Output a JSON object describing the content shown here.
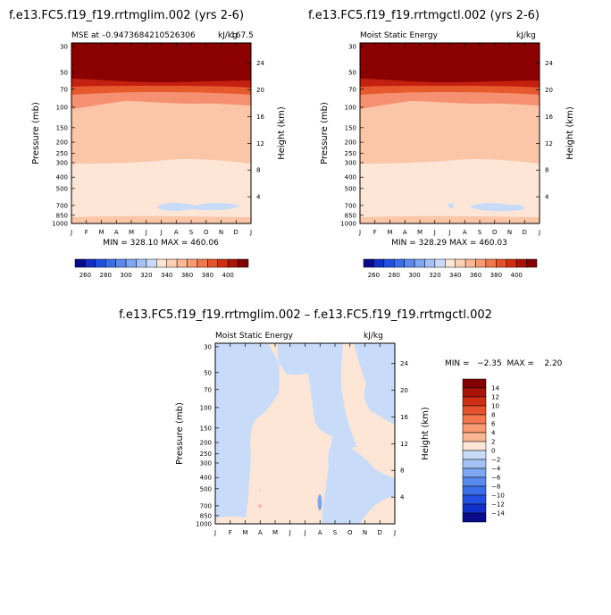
{
  "titles": {
    "left": "f.e13.FC5.f19_f19.rrtmglim.002 (yrs 2-6)",
    "right": "f.e13.FC5.f19_f19.rrtmgctl.002 (yrs 2-6)",
    "diff": "f.e13.FC5.f19_f19.rrtmglim.002 – f.e13.FC5.f19_f19.rrtmgctl.002"
  },
  "panel_left": {
    "subtitle_left": "MSE at –0.9473684210526306",
    "subtitle_right": "kJ/kg",
    "subtitle_right_overlap": "167.5",
    "stats": "MIN = 328.10  MAX = 460.06"
  },
  "panel_right": {
    "subtitle_left": "Moist Static Energy",
    "subtitle_right": "kJ/kg",
    "stats": "MIN = 328.29  MAX = 460.03"
  },
  "panel_diff": {
    "subtitle_left": "Moist Static Energy",
    "subtitle_right": "kJ/kg",
    "stats": "MIN =   −2.35  MAX =    2.20"
  },
  "chart_data": [
    {
      "type": "contour",
      "panel": "rrtmglim",
      "xlabel": "",
      "ylabel": "Pressure (mb)",
      "y2label": "Height (km)",
      "x_ticks": [
        "J",
        "F",
        "M",
        "A",
        "M",
        "J",
        "J",
        "A",
        "S",
        "O",
        "N",
        "D",
        "J"
      ],
      "pressure_ticks": [
        30,
        50,
        70,
        100,
        150,
        200,
        250,
        300,
        400,
        500,
        700,
        850,
        1000
      ],
      "height_ticks": [
        4,
        8,
        12,
        16,
        20,
        24
      ],
      "levels": [
        328,
        340,
        360,
        380,
        400
      ],
      "min": 328.1,
      "max": 460.06,
      "units": "kJ/kg"
    },
    {
      "type": "contour",
      "panel": "rrtmgctl",
      "ylabel": "Pressure (mb)",
      "y2label": "Height (km)",
      "x_ticks": [
        "J",
        "F",
        "M",
        "A",
        "M",
        "J",
        "J",
        "A",
        "S",
        "O",
        "N",
        "D",
        "J"
      ],
      "pressure_ticks": [
        30,
        50,
        70,
        100,
        150,
        200,
        250,
        300,
        400,
        500,
        700,
        850,
        1000
      ],
      "height_ticks": [
        4,
        8,
        12,
        16,
        20,
        24
      ],
      "min": 328.29,
      "max": 460.03,
      "units": "kJ/kg"
    },
    {
      "type": "contour",
      "panel": "difference",
      "ylabel": "Pressure (mb)",
      "y2label": "Height (km)",
      "x_ticks": [
        "J",
        "F",
        "M",
        "A",
        "M",
        "J",
        "J",
        "A",
        "S",
        "O",
        "N",
        "D",
        "J"
      ],
      "pressure_ticks": [
        30,
        50,
        70,
        100,
        150,
        200,
        250,
        300,
        400,
        500,
        700,
        850,
        1000
      ],
      "height_ticks": [
        4,
        8,
        12,
        16,
        20,
        24
      ],
      "min": -2.35,
      "max": 2.2,
      "units": "kJ/kg"
    }
  ],
  "colorbar_top": {
    "labels": [
      "260",
      "280",
      "300",
      "320",
      "340",
      "360",
      "380",
      "400"
    ],
    "colors": [
      "#0a0a8c",
      "#1030c8",
      "#2050e0",
      "#3a6ee8",
      "#5a8aee",
      "#7ea6f2",
      "#a4c2f6",
      "#c8dcfa",
      "#fde6d6",
      "#fcd0b6",
      "#fbb694",
      "#f99a72",
      "#f4774e",
      "#e6522c",
      "#cc2e12",
      "#a81408",
      "#820000"
    ]
  },
  "colorbar_diff": {
    "labels": [
      "14",
      "12",
      "10",
      "8",
      "6",
      "4",
      "2",
      "0",
      "−2",
      "−4",
      "−6",
      "−8",
      "−10",
      "−12",
      "−14"
    ],
    "colors": [
      "#820000",
      "#a81408",
      "#cc2e12",
      "#e6522c",
      "#f4774e",
      "#f99a72",
      "#fbb694",
      "#fde6d6",
      "#c8dcfa",
      "#a4c2f6",
      "#7ea6f2",
      "#5a8aee",
      "#3a6ee8",
      "#2050e0",
      "#1030c8",
      "#0a0a8c"
    ]
  },
  "fill_colors": {
    "level_dark": "#8b0000",
    "level_red": "#c42010",
    "level_orange": "#e65a2e",
    "level_salmon": "#f59070",
    "level_peach": "#fbc6a8",
    "level_cream": "#fde6d6",
    "level_blue": "#c8dcfa",
    "level_blue2": "#a4c2f6",
    "level_bluedeep": "#7ea6f2",
    "level_pink": "#fbb6b6"
  }
}
